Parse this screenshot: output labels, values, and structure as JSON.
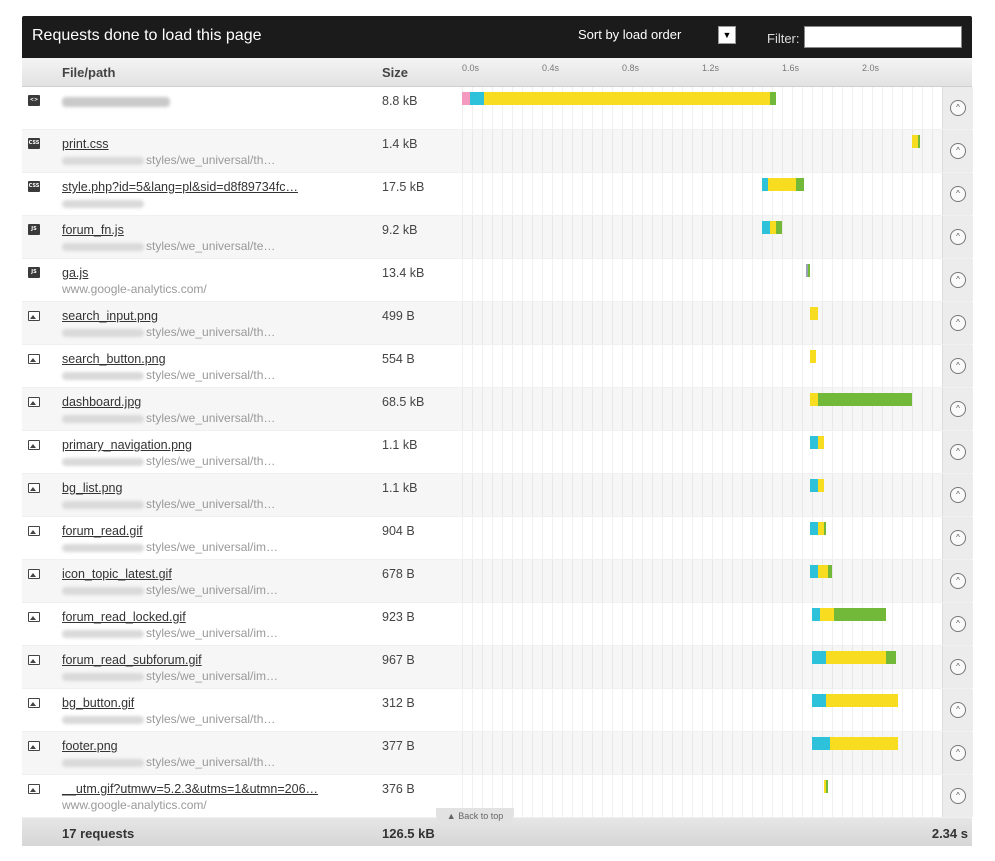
{
  "topbar": {
    "title": "Requests done to load this page",
    "sort_label": "Sort by load order",
    "filter_label": "Filter:",
    "filter_value": ""
  },
  "header": {
    "file_col": "File/path",
    "size_col": "Size",
    "ticks": [
      "0.0s",
      "0.4s",
      "0.8s",
      "1.2s",
      "1.6s",
      "2.0s"
    ]
  },
  "timeline": {
    "seconds_per_tick": 0.4,
    "max_seconds": 2.4,
    "colors": {
      "dns": "#f49ac1",
      "connect": "#2ec2da",
      "wait": "#f7dc1f",
      "receive": "#72b93a",
      "other": "#9aa0b8"
    }
  },
  "requests": [
    {
      "icon": "html",
      "name": "",
      "path": "",
      "size": "8.8 kB",
      "blurred_name": true,
      "timing": [
        [
          "dns",
          0.0,
          0.04
        ],
        [
          "connect",
          0.04,
          0.11
        ],
        [
          "wait",
          0.11,
          1.54
        ],
        [
          "receive",
          1.54,
          1.57
        ]
      ]
    },
    {
      "icon": "css",
      "name": "print.css",
      "path": "styles/we_universal/th…",
      "size": "1.4 kB",
      "timing": [
        [
          "wait",
          2.25,
          2.28
        ],
        [
          "receive",
          2.28,
          2.29
        ]
      ]
    },
    {
      "icon": "css",
      "name": "style.php?id=5&lang=pl&sid=d8f89734fc…",
      "path": "",
      "size": "17.5 kB",
      "timing": [
        [
          "connect",
          1.5,
          1.53
        ],
        [
          "wait",
          1.53,
          1.67
        ],
        [
          "receive",
          1.67,
          1.71
        ]
      ]
    },
    {
      "icon": "js",
      "name": "forum_fn.js",
      "path": "styles/we_universal/te…",
      "size": "9.2 kB",
      "timing": [
        [
          "connect",
          1.5,
          1.54
        ],
        [
          "wait",
          1.54,
          1.57
        ],
        [
          "receive",
          1.57,
          1.6
        ]
      ]
    },
    {
      "icon": "js",
      "name": "ga.js",
      "path": "www.google-analytics.com/",
      "size": "13.4 kB",
      "timing": [
        [
          "other",
          1.72,
          1.73
        ],
        [
          "receive",
          1.73,
          1.74
        ]
      ]
    },
    {
      "icon": "image",
      "name": "search_input.png",
      "path": "styles/we_universal/th…",
      "size": "499 B",
      "timing": [
        [
          "wait",
          1.74,
          1.78
        ]
      ]
    },
    {
      "icon": "image",
      "name": "search_button.png",
      "path": "styles/we_universal/th…",
      "size": "554 B",
      "timing": [
        [
          "wait",
          1.74,
          1.77
        ]
      ]
    },
    {
      "icon": "image",
      "name": "dashboard.jpg",
      "path": "styles/we_universal/th…",
      "size": "68.5 kB",
      "timing": [
        [
          "wait",
          1.74,
          1.78
        ],
        [
          "receive",
          1.78,
          2.25
        ]
      ]
    },
    {
      "icon": "image",
      "name": "primary_navigation.png",
      "path": "styles/we_universal/th…",
      "size": "1.1 kB",
      "timing": [
        [
          "connect",
          1.74,
          1.78
        ],
        [
          "wait",
          1.78,
          1.81
        ]
      ]
    },
    {
      "icon": "image",
      "name": "bg_list.png",
      "path": "styles/we_universal/th…",
      "size": "1.1 kB",
      "timing": [
        [
          "connect",
          1.74,
          1.78
        ],
        [
          "wait",
          1.78,
          1.81
        ]
      ]
    },
    {
      "icon": "image",
      "name": "forum_read.gif",
      "path": "styles/we_universal/im…",
      "size": "904 B",
      "timing": [
        [
          "connect",
          1.74,
          1.78
        ],
        [
          "wait",
          1.78,
          1.81
        ],
        [
          "receive",
          1.81,
          1.82
        ]
      ]
    },
    {
      "icon": "image",
      "name": "icon_topic_latest.gif",
      "path": "styles/we_universal/im…",
      "size": "678 B",
      "timing": [
        [
          "connect",
          1.74,
          1.78
        ],
        [
          "wait",
          1.78,
          1.83
        ],
        [
          "receive",
          1.83,
          1.85
        ]
      ]
    },
    {
      "icon": "image",
      "name": "forum_read_locked.gif",
      "path": "styles/we_universal/im…",
      "size": "923 B",
      "timing": [
        [
          "connect",
          1.75,
          1.79
        ],
        [
          "wait",
          1.79,
          1.86
        ],
        [
          "receive",
          1.86,
          2.12
        ]
      ]
    },
    {
      "icon": "image",
      "name": "forum_read_subforum.gif",
      "path": "styles/we_universal/im…",
      "size": "967 B",
      "timing": [
        [
          "connect",
          1.75,
          1.82
        ],
        [
          "wait",
          1.82,
          2.12
        ],
        [
          "receive",
          2.12,
          2.17
        ]
      ]
    },
    {
      "icon": "image",
      "name": "bg_button.gif",
      "path": "styles/we_universal/th…",
      "size": "312 B",
      "timing": [
        [
          "connect",
          1.75,
          1.82
        ],
        [
          "wait",
          1.82,
          2.18
        ]
      ]
    },
    {
      "icon": "image",
      "name": "footer.png",
      "path": "styles/we_universal/th…",
      "size": "377 B",
      "timing": [
        [
          "connect",
          1.75,
          1.84
        ],
        [
          "wait",
          1.84,
          2.18
        ]
      ]
    },
    {
      "icon": "image",
      "name": "__utm.gif?utmwv=5.2.3&utms=1&utmn=206…",
      "path": "www.google-analytics.com/",
      "size": "376 B",
      "timing": [
        [
          "wait",
          1.81,
          1.82
        ],
        [
          "receive",
          1.82,
          1.83
        ]
      ]
    }
  ],
  "footer": {
    "requests": "17 requests",
    "total_size": "126.5 kB",
    "total_time": "2.34 s",
    "back_to_top": "Back to top"
  }
}
